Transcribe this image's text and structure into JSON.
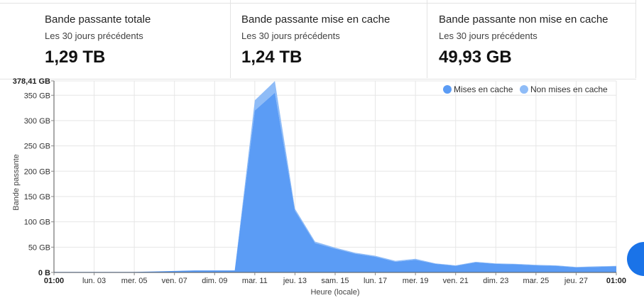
{
  "stats": [
    {
      "title": "Bande passante totale",
      "subtitle": "Les 30 jours précédents",
      "value": "1,29 TB"
    },
    {
      "title": "Bande passante mise en cache",
      "subtitle": "Les 30 jours précédents",
      "value": "1,24 TB"
    },
    {
      "title": "Bande passante non mise en cache",
      "subtitle": "Les 30 jours précédents",
      "value": "49,93 GB"
    }
  ],
  "colors": {
    "cached": "#5b9cf5",
    "uncached": "#8fbcf7",
    "grid": "#e6e6e6"
  },
  "chart_data": {
    "type": "area",
    "stacked": true,
    "ylabel": "Bande passante",
    "xlabel": "Heure (locale)",
    "y_ticks": [
      {
        "label": "0 B",
        "value": 0
      },
      {
        "label": "50 GB",
        "value": 50
      },
      {
        "label": "100 GB",
        "value": 100
      },
      {
        "label": "150 GB",
        "value": 150
      },
      {
        "label": "200 GB",
        "value": 200
      },
      {
        "label": "250 GB",
        "value": 250
      },
      {
        "label": "300 GB",
        "value": 300
      },
      {
        "label": "350 GB",
        "value": 350
      },
      {
        "label": "378,41 GB",
        "value": 378.41
      }
    ],
    "ylim": [
      0,
      378.41
    ],
    "x_ticks": [
      "01:00",
      "lun. 03",
      "mer. 05",
      "ven. 07",
      "dim. 09",
      "mar. 11",
      "jeu. 13",
      "sam. 15",
      "lun. 17",
      "mer. 19",
      "ven. 21",
      "dim. 23",
      "mar. 25",
      "jeu. 27",
      "01:00"
    ],
    "legend": {
      "position": "top-right",
      "entries": [
        "Mises en cache",
        "Non mises en cache"
      ]
    },
    "grid": true,
    "x": [
      0,
      1,
      2,
      3,
      4,
      5,
      6,
      7,
      8,
      9,
      10,
      11,
      12,
      13,
      14,
      15,
      16,
      17,
      18,
      19,
      20,
      21,
      22,
      23,
      24,
      25,
      26,
      27,
      28
    ],
    "series": [
      {
        "name": "Mises en cache",
        "values": [
          1,
          1,
          1,
          1,
          1,
          2,
          3,
          4,
          4,
          4,
          320,
          355,
          122,
          58,
          47,
          37,
          31,
          21,
          25,
          17,
          13,
          20,
          17,
          16,
          14,
          13,
          10,
          11,
          12
        ]
      },
      {
        "name": "Non mises en cache",
        "values": [
          0,
          0,
          0,
          0,
          0,
          0,
          0,
          0,
          0,
          0,
          20,
          23,
          4,
          3,
          2,
          2,
          2,
          2,
          2,
          1,
          1,
          1,
          1,
          1,
          1,
          1,
          1,
          1,
          1
        ]
      }
    ]
  }
}
